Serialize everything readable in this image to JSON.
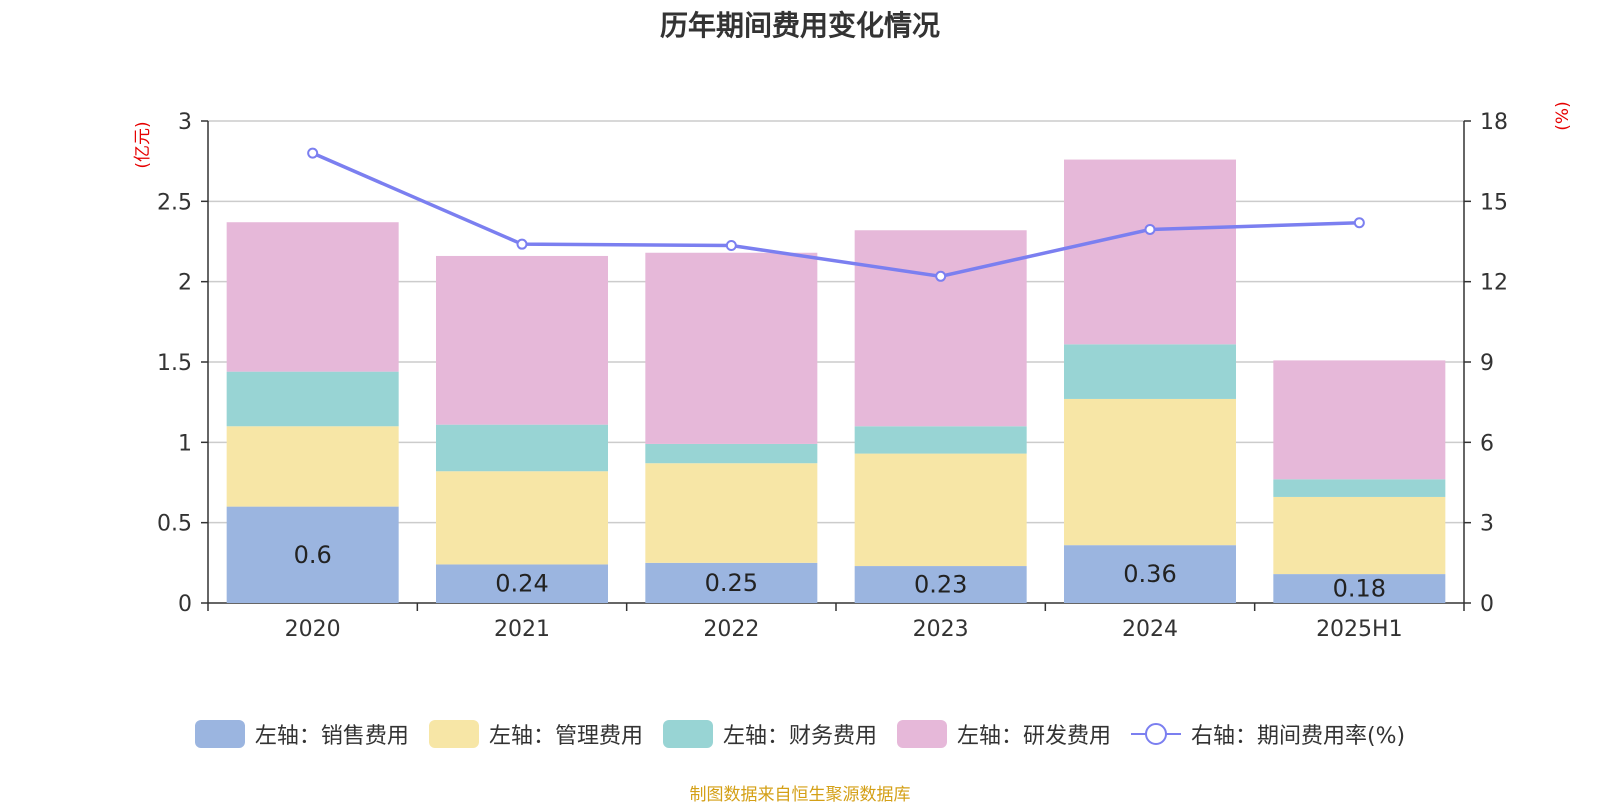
{
  "chart_data": {
    "type": "bar",
    "title": "历年期间费用变化情况",
    "categories": [
      "2020",
      "2021",
      "2022",
      "2023",
      "2024",
      "2025H1"
    ],
    "y_left": {
      "label": "(亿元)",
      "ticks": [
        "0",
        "0.5",
        "1",
        "1.5",
        "2",
        "2.5",
        "3"
      ],
      "range": [
        0,
        3
      ]
    },
    "y_right": {
      "label": "(%)",
      "ticks": [
        "0",
        "3",
        "6",
        "9",
        "12",
        "15",
        "18"
      ],
      "range": [
        0,
        18
      ]
    },
    "grid": true,
    "legend_position": "bottom",
    "series": [
      {
        "name": "左轴：销售费用",
        "axis": "left",
        "kind": "bar",
        "color": "#9bb5e0",
        "values": [
          0.6,
          0.24,
          0.25,
          0.23,
          0.36,
          0.18
        ],
        "labels": [
          "0.6",
          "0.24",
          "0.25",
          "0.23",
          "0.36",
          "0.18"
        ]
      },
      {
        "name": "左轴：管理费用",
        "axis": "left",
        "kind": "bar",
        "color": "#f7e6a6",
        "values": [
          0.5,
          0.58,
          0.62,
          0.7,
          0.91,
          0.48
        ]
      },
      {
        "name": "左轴：财务费用",
        "axis": "left",
        "kind": "bar",
        "color": "#98d4d4",
        "values": [
          0.34,
          0.29,
          0.12,
          0.17,
          0.34,
          0.11
        ]
      },
      {
        "name": "左轴：研发费用",
        "axis": "left",
        "kind": "bar",
        "color": "#e6b8d9",
        "values": [
          0.93,
          1.05,
          1.19,
          1.22,
          1.15,
          0.74
        ]
      },
      {
        "name": "右轴：期间费用率(%)",
        "axis": "right",
        "kind": "line",
        "color": "#7b7ff0",
        "values": [
          16.8,
          13.4,
          13.35,
          12.2,
          13.95,
          14.2
        ]
      }
    ]
  },
  "source": "制图数据来自恒生聚源数据库"
}
